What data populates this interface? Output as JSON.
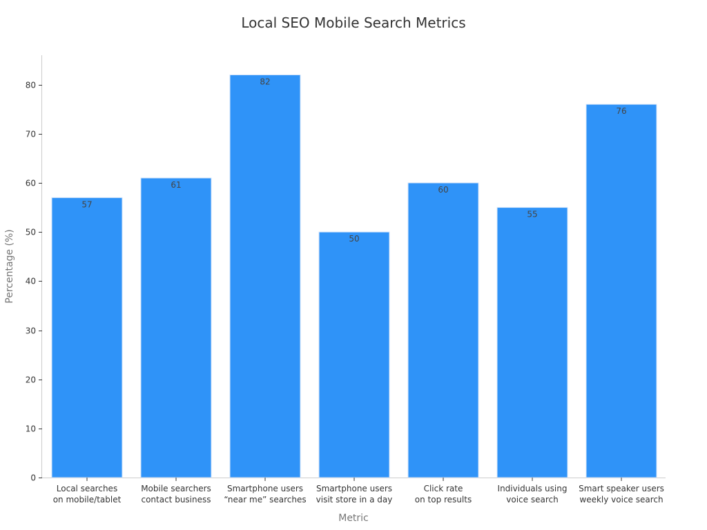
{
  "chart_data": {
    "type": "bar",
    "title": "Local SEO Mobile Search Metrics",
    "xlabel": "Metric",
    "ylabel": "Percentage (%)",
    "categories": [
      [
        "Local searches",
        "on mobile/tablet"
      ],
      [
        "Mobile searchers",
        "contact business"
      ],
      [
        "Smartphone users",
        "“near me” searches"
      ],
      [
        "Smartphone users",
        "visit store in a day"
      ],
      [
        "Click rate",
        "on top results"
      ],
      [
        "Individuals using",
        "voice search"
      ],
      [
        "Smart speaker users",
        "weekly voice search"
      ]
    ],
    "values": [
      57,
      61,
      82,
      50,
      60,
      55,
      76
    ],
    "ylim": [
      0,
      86
    ],
    "yticks": [
      0,
      10,
      20,
      30,
      40,
      50,
      60,
      70,
      80
    ],
    "grid": false,
    "bar_color": "#2F93F8",
    "bar_edge_color": "#D6E6FA"
  }
}
